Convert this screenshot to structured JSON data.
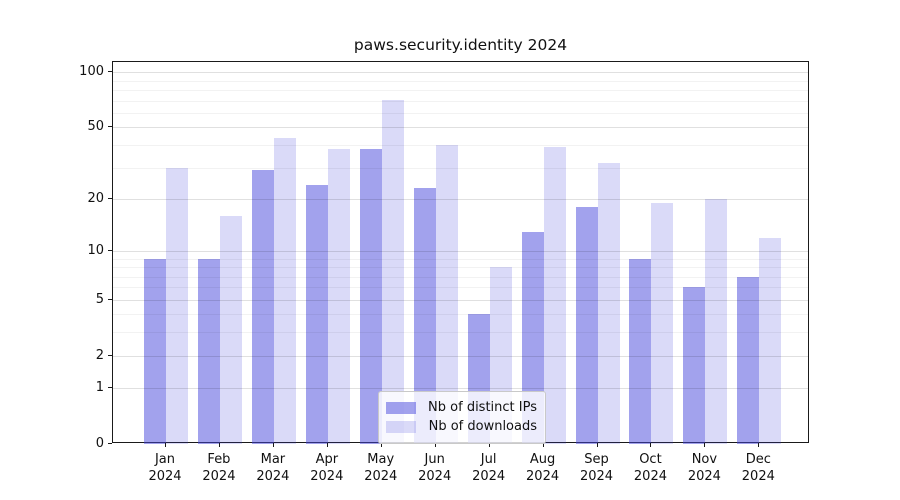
{
  "title": "paws.security.identity 2024",
  "chart_data": {
    "type": "bar",
    "title": "paws.security.identity 2024",
    "categories": [
      "Jan",
      "Feb",
      "Mar",
      "Apr",
      "May",
      "Jun",
      "Jul",
      "Aug",
      "Sep",
      "Oct",
      "Nov",
      "Dec"
    ],
    "category_year": "2024",
    "series": [
      {
        "name": "Nb of distinct IPs",
        "color": "rgba(70,70,220,0.5)",
        "solid_color": "#a2a2ee",
        "values": [
          9,
          9,
          29,
          24,
          38,
          23,
          4,
          13,
          18,
          9,
          6,
          7
        ]
      },
      {
        "name": "Nb of downloads",
        "color": "rgba(70,70,220,0.2)",
        "solid_color": "#dadaf8",
        "values": [
          30,
          16,
          44,
          38,
          71,
          40,
          8,
          39,
          32,
          19,
          20,
          12
        ]
      }
    ],
    "yscale": "log1p",
    "ylim": [
      0,
      113
    ],
    "y_ticks": [
      0,
      1,
      2,
      5,
      10,
      20,
      50,
      100
    ],
    "y_minor_gridlines": [
      3,
      4,
      6,
      7,
      8,
      9,
      30,
      40,
      60,
      70,
      80,
      90
    ],
    "xlabel": "",
    "ylabel": "",
    "grid": true,
    "grid_above_bars": true,
    "legend_position": "lower center",
    "colors": {
      "background": "#ffffff",
      "axis": "#1a1a1a",
      "grid_major": "rgba(0,0,0,0.12)",
      "grid_minor": "rgba(0,0,0,0.05)",
      "text": "#111111",
      "legend_border": "#c9c9c9",
      "legend_background": "rgba(255,255,255,0.8)"
    }
  }
}
